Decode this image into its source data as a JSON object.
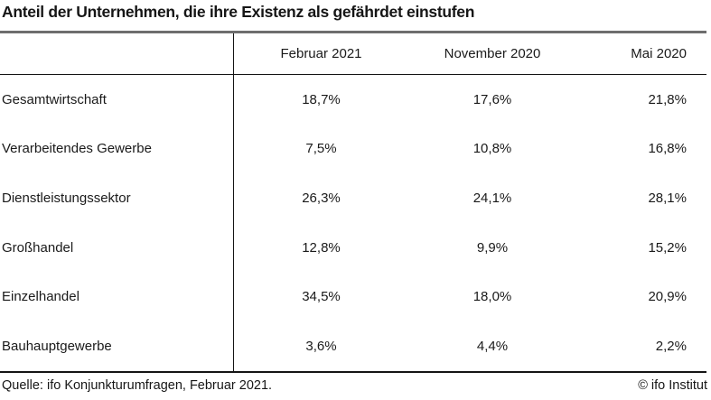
{
  "title": "Anteil der Unternehmen, die ihre Existenz als gefährdet einstufen",
  "table": {
    "columns": [
      "Februar 2021",
      "November 2020",
      "Mai 2020"
    ],
    "rows": [
      {
        "label": "Gesamtwirtschaft",
        "values": [
          "18,7%",
          "17,6%",
          "21,8%"
        ]
      },
      {
        "label": "Verarbeitendes Gewerbe",
        "values": [
          "7,5%",
          "10,8%",
          "16,8%"
        ]
      },
      {
        "label": "Dienstleistungssektor",
        "values": [
          "26,3%",
          "24,1%",
          "28,1%"
        ]
      },
      {
        "label": "Großhandel",
        "values": [
          "12,8%",
          "9,9%",
          "15,2%"
        ]
      },
      {
        "label": "Einzelhandel",
        "values": [
          "34,5%",
          "18,0%",
          "20,9%"
        ]
      },
      {
        "label": "Bauhauptgewerbe",
        "values": [
          "3,6%",
          "4,4%",
          "2,2%"
        ]
      }
    ]
  },
  "footer": {
    "source": "Quelle: ifo Konjunkturumfragen, Februar 2021.",
    "copyright": "© ifo Institut"
  },
  "colors": {
    "top_border": "#6e6e6e",
    "line": "#141414",
    "text": "#1a1a1a",
    "background": "#ffffff"
  },
  "chart_data": {
    "type": "table",
    "title": "Anteil der Unternehmen, die ihre Existenz als gefährdet einstufen",
    "categories": [
      "Gesamtwirtschaft",
      "Verarbeitendes Gewerbe",
      "Dienstleistungssektor",
      "Großhandel",
      "Einzelhandel",
      "Bauhauptgewerbe"
    ],
    "series": [
      {
        "name": "Februar 2021",
        "values": [
          18.7,
          7.5,
          26.3,
          12.8,
          34.5,
          3.6
        ]
      },
      {
        "name": "November 2020",
        "values": [
          17.6,
          10.8,
          24.1,
          9.9,
          18.0,
          4.4
        ]
      },
      {
        "name": "Mai 2020",
        "values": [
          21.8,
          16.8,
          28.1,
          15.2,
          20.9,
          2.2
        ]
      }
    ],
    "unit": "%",
    "source": "Quelle: ifo Konjunkturumfragen, Februar 2021.",
    "attribution": "© ifo Institut"
  }
}
